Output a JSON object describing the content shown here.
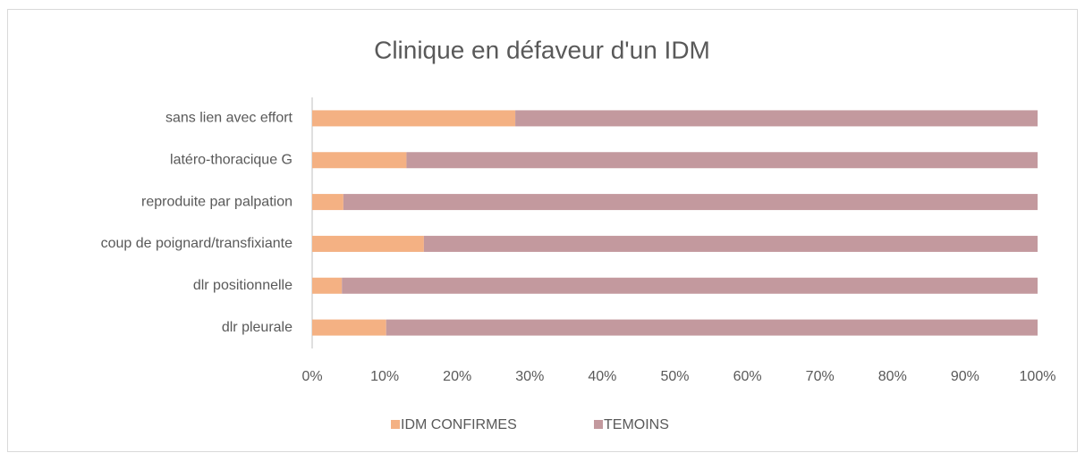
{
  "chart_data": {
    "type": "stacked-barh",
    "title": "Clinique en défaveur d'un IDM",
    "categories": [
      "sans lien avec effort",
      "latéro-thoracique G",
      "reproduite par palpation",
      "coup de poignard/transfixiante",
      "dlr positionnelle",
      "dlr pleurale"
    ],
    "series": [
      {
        "name": "IDM CONFIRMES",
        "color": "#F4B183",
        "values": [
          28,
          13,
          4.3,
          15.4,
          4.1,
          10.2
        ]
      },
      {
        "name": "TEMOINS",
        "color": "#C3999E",
        "values": [
          72,
          87,
          95.7,
          84.6,
          95.9,
          89.8
        ]
      }
    ],
    "xlim": [
      0,
      100
    ],
    "xticks": [
      {
        "value": 0,
        "label": "0%"
      },
      {
        "value": 10,
        "label": "10%"
      },
      {
        "value": 20,
        "label": "20%"
      },
      {
        "value": 30,
        "label": "30%"
      },
      {
        "value": 40,
        "label": "40%"
      },
      {
        "value": 50,
        "label": "50%"
      },
      {
        "value": 60,
        "label": "60%"
      },
      {
        "value": 70,
        "label": "70%"
      },
      {
        "value": 80,
        "label": "80%"
      },
      {
        "value": 90,
        "label": "90%"
      },
      {
        "value": 100,
        "label": "100%"
      }
    ],
    "legend": "bottom"
  }
}
